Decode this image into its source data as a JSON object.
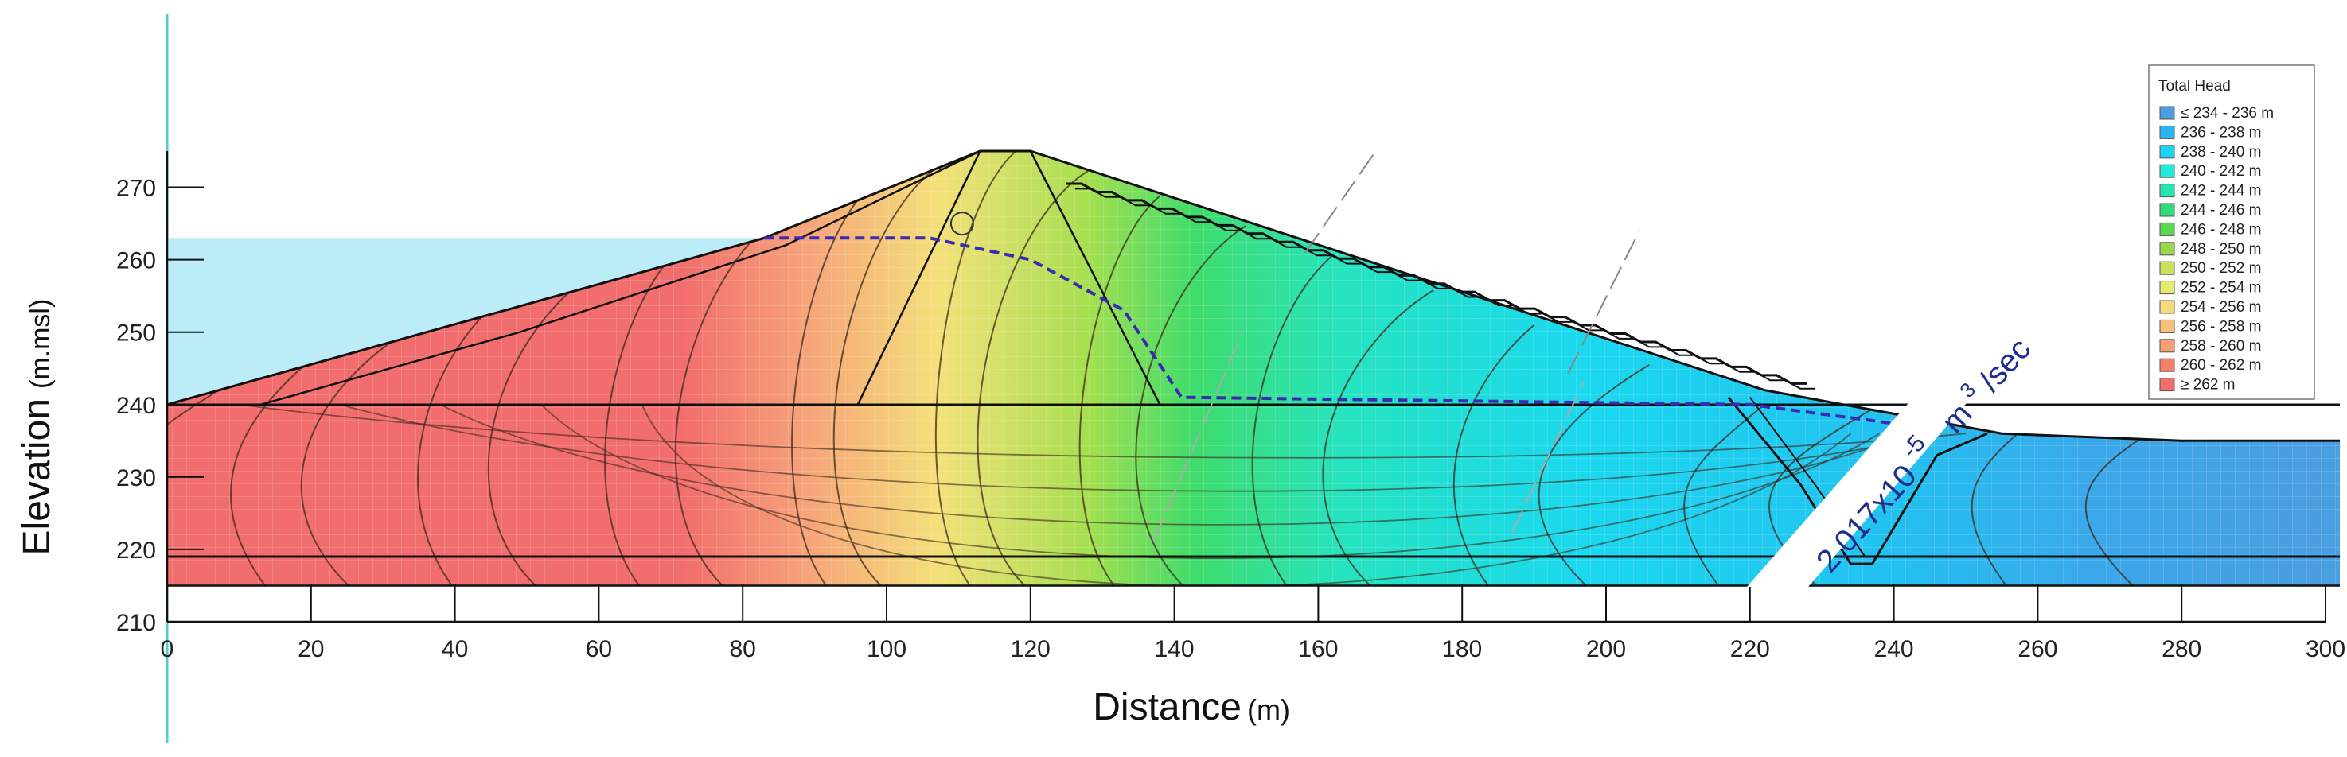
{
  "chart_data": {
    "type": "heatmap",
    "description_type": "seepage total-head contour section",
    "xlabel": "Distance",
    "xlabel_unit": "(m)",
    "ylabel": "Elevation",
    "ylabel_unit": "(m.msl)",
    "xlim": [
      0,
      300
    ],
    "ylim": [
      210,
      275
    ],
    "x_ticks": [
      0,
      20,
      40,
      60,
      80,
      100,
      120,
      140,
      160,
      180,
      200,
      220,
      240,
      260,
      280,
      300
    ],
    "y_ticks": [
      210,
      220,
      230,
      240,
      250,
      260,
      270
    ],
    "legend": {
      "title": "Total Head",
      "placement": "top-right",
      "entries": [
        {
          "label": "≤ 234 - 236 m",
          "color": "#4a9fe0"
        },
        {
          "label": "236 - 238 m",
          "color": "#29b6f0"
        },
        {
          "label": "238 - 240 m",
          "color": "#1ad6f2"
        },
        {
          "label": "240 - 242 m",
          "color": "#22e8d8"
        },
        {
          "label": "242 - 244 m",
          "color": "#26e6b0"
        },
        {
          "label": "244 - 246 m",
          "color": "#30dc78"
        },
        {
          "label": "246 - 248 m",
          "color": "#5ad852"
        },
        {
          "label": "248 - 250 m",
          "color": "#9ad84a"
        },
        {
          "label": "250 - 252 m",
          "color": "#c8e25a"
        },
        {
          "label": "252 - 254 m",
          "color": "#e8ea70"
        },
        {
          "label": "254 - 256 m",
          "color": "#f6dc78"
        },
        {
          "label": "256 - 258 m",
          "color": "#f8c07a"
        },
        {
          "label": "258 - 260 m",
          "color": "#f8a070"
        },
        {
          "label": "260 - 262 m",
          "color": "#f48068"
        },
        {
          "label": "≥ 262 m",
          "color": "#f26d6d"
        }
      ]
    },
    "reservoir_level": 263,
    "tailwater_level": 236,
    "dam_profile": [
      [
        0,
        240
      ],
      [
        83,
        263
      ],
      [
        113,
        275
      ],
      [
        120,
        275
      ],
      [
        222,
        242
      ],
      [
        255,
        236
      ],
      [
        280,
        235
      ],
      [
        302,
        235
      ]
    ],
    "foundation_top": 240,
    "foundation_bottom": 215,
    "internal_layer": 219,
    "phreatic_line": [
      [
        83,
        263
      ],
      [
        106,
        263
      ],
      [
        120,
        260
      ],
      [
        133,
        253
      ],
      [
        141,
        241
      ],
      [
        220,
        240
      ],
      [
        243,
        237
      ]
    ],
    "flux_annotation": {
      "base": "2.017x10",
      "exponent": "-5",
      "unit_base": "m",
      "unit_exponent": "3",
      "unit_suffix": "/sec"
    }
  }
}
